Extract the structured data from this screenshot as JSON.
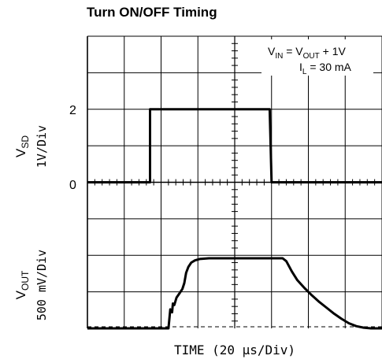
{
  "chart_data": {
    "type": "line",
    "title": "Turn ON/OFF Timing",
    "xlabel": "TIME (20 μs/Div)",
    "x_divisions": 8,
    "y_divisions": 8,
    "grid": true,
    "annotation": {
      "line1_base": "V",
      "line1_sub": "IN",
      "line1_mid": " = V",
      "line1_sub2": "OUT",
      "line1_end": " + 1V",
      "line2_base": "I",
      "line2_sub": "L",
      "line2_end": " = 30 mA",
      "placement": "top-right"
    },
    "channels": [
      {
        "name": "VSD",
        "ylabel_base": "V",
        "ylabel_sub": "SD",
        "scale": "1V/Div",
        "zero_label": "0",
        "level_label": "2",
        "zero_div": 4,
        "div_per_unit": 1,
        "points": [
          [
            0,
            0
          ],
          [
            1.7,
            0
          ],
          [
            1.7,
            2
          ],
          [
            4.95,
            2
          ],
          [
            5.0,
            0
          ],
          [
            8,
            0
          ]
        ]
      },
      {
        "name": "VOUT",
        "ylabel_base": "V",
        "ylabel_sub": "OUT",
        "scale": "500 mV/Div",
        "zero_div": 0,
        "div_per_unit": 2,
        "points": [
          [
            0,
            0
          ],
          [
            2.2,
            0
          ],
          [
            2.25,
            0.26
          ],
          [
            2.3,
            0.22
          ],
          [
            2.32,
            0.34
          ],
          [
            2.36,
            0.32
          ],
          [
            2.42,
            0.42
          ],
          [
            2.5,
            0.48
          ],
          [
            2.58,
            0.54
          ],
          [
            2.63,
            0.62
          ],
          [
            2.68,
            0.76
          ],
          [
            2.74,
            0.84
          ],
          [
            2.82,
            0.9
          ],
          [
            2.92,
            0.93
          ],
          [
            3.05,
            0.95
          ],
          [
            3.3,
            0.96
          ],
          [
            5.3,
            0.96
          ],
          [
            5.4,
            0.92
          ],
          [
            5.55,
            0.78
          ],
          [
            5.7,
            0.66
          ],
          [
            5.9,
            0.55
          ],
          [
            6.1,
            0.45
          ],
          [
            6.3,
            0.36
          ],
          [
            6.5,
            0.28
          ],
          [
            6.7,
            0.2
          ],
          [
            6.9,
            0.13
          ],
          [
            7.1,
            0.07
          ],
          [
            7.3,
            0.03
          ],
          [
            7.5,
            0.01
          ],
          [
            7.7,
            0.0
          ],
          [
            8,
            0.0
          ]
        ]
      }
    ]
  }
}
